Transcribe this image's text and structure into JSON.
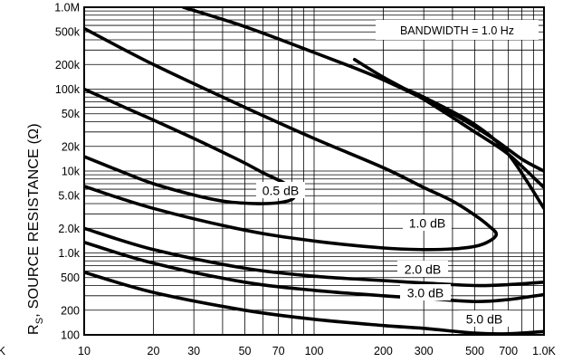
{
  "chart_data": {
    "type": "line",
    "title": "",
    "ylabel_main": "R",
    "ylabel_sub": "S",
    "ylabel_rest": ", SOURCE RESISTANCE  (Ω)",
    "xlabel_fragment": "K",
    "x_scale": "log",
    "y_scale": "log",
    "xlim": [
      10,
      1000
    ],
    "ylim": [
      100,
      1000000
    ],
    "x_ticks": [
      {
        "value": 10,
        "label": "10"
      },
      {
        "value": 20,
        "label": "20"
      },
      {
        "value": 30,
        "label": "30"
      },
      {
        "value": 50,
        "label": "50"
      },
      {
        "value": 70,
        "label": "70"
      },
      {
        "value": 100,
        "label": "100"
      },
      {
        "value": 200,
        "label": "200"
      },
      {
        "value": 300,
        "label": "300"
      },
      {
        "value": 500,
        "label": "500"
      },
      {
        "value": 700,
        "label": "700"
      },
      {
        "value": 1000,
        "label": "1.0K"
      }
    ],
    "y_ticks": [
      {
        "value": 100,
        "label": "100"
      },
      {
        "value": 200,
        "label": "200"
      },
      {
        "value": 500,
        "label": "500"
      },
      {
        "value": 1000,
        "label": "1.0k"
      },
      {
        "value": 2000,
        "label": "2.0k"
      },
      {
        "value": 5000,
        "label": "5.0k"
      },
      {
        "value": 10000,
        "label": "10k"
      },
      {
        "value": 20000,
        "label": "20k"
      },
      {
        "value": 50000,
        "label": "50k"
      },
      {
        "value": 100000,
        "label": "100k"
      },
      {
        "value": 200000,
        "label": "200k"
      },
      {
        "value": 500000,
        "label": "500k"
      },
      {
        "value": 1000000,
        "label": "1.0M"
      }
    ],
    "grid": true,
    "annotation": "BANDWIDTH = 1.0 Hz",
    "annotation_position": "top-right",
    "series": [
      {
        "name": "0.5 dB",
        "closed": true,
        "points": [
          [
            10,
            15000
          ],
          [
            15,
            9500
          ],
          [
            20,
            7000
          ],
          [
            30,
            5100
          ],
          [
            40,
            4300
          ],
          [
            50,
            4050
          ],
          [
            60,
            4000
          ],
          [
            70,
            4100
          ],
          [
            80,
            4500
          ],
          [
            82,
            5400
          ],
          [
            75,
            7000
          ],
          [
            60,
            9500
          ],
          [
            50,
            12500
          ],
          [
            40,
            17000
          ],
          [
            30,
            25000
          ],
          [
            20,
            42000
          ],
          [
            15,
            60000
          ],
          [
            10,
            100000
          ]
        ]
      },
      {
        "name": "1.0 dB",
        "closed": true,
        "points": [
          [
            10,
            6500
          ],
          [
            20,
            3500
          ],
          [
            50,
            1900
          ],
          [
            100,
            1400
          ],
          [
            200,
            1150
          ],
          [
            300,
            1100
          ],
          [
            400,
            1120
          ],
          [
            500,
            1200
          ],
          [
            580,
            1400
          ],
          [
            620,
            1700
          ],
          [
            580,
            2100
          ],
          [
            500,
            2900
          ],
          [
            400,
            4300
          ],
          [
            300,
            6300
          ],
          [
            200,
            11000
          ],
          [
            100,
            25000
          ],
          [
            50,
            60000
          ],
          [
            20,
            200000
          ],
          [
            10,
            550000
          ]
        ]
      },
      {
        "name": "2.0 dB",
        "points": [
          [
            10,
            2000
          ],
          [
            20,
            1100
          ],
          [
            50,
            650
          ],
          [
            100,
            520
          ],
          [
            200,
            460
          ],
          [
            300,
            430
          ],
          [
            500,
            400
          ],
          [
            700,
            410
          ],
          [
            1000,
            440
          ]
        ]
      },
      {
        "name": "3.0 dB",
        "points": [
          [
            10,
            1350
          ],
          [
            20,
            750
          ],
          [
            50,
            440
          ],
          [
            100,
            350
          ],
          [
            200,
            300
          ],
          [
            300,
            280
          ],
          [
            500,
            255
          ],
          [
            700,
            270
          ],
          [
            1000,
            310
          ]
        ]
      },
      {
        "name": "5.0 dB",
        "points": [
          [
            10,
            580
          ],
          [
            20,
            330
          ],
          [
            50,
            200
          ],
          [
            100,
            155
          ],
          [
            200,
            130
          ],
          [
            300,
            120
          ],
          [
            500,
            105
          ],
          [
            700,
            103
          ],
          [
            1000,
            110
          ]
        ]
      },
      {
        "name": "",
        "points": [
          [
            27,
            1000000
          ],
          [
            50,
            580000
          ],
          [
            100,
            280000
          ],
          [
            200,
            130000
          ],
          [
            400,
            50000
          ],
          [
            600,
            25000
          ],
          [
            800,
            14000
          ],
          [
            1000,
            10000
          ]
        ]
      },
      {
        "name": "",
        "points": [
          [
            150,
            230000
          ],
          [
            200,
            140000
          ],
          [
            300,
            75000
          ],
          [
            500,
            30000
          ],
          [
            700,
            16000
          ],
          [
            1000,
            6300
          ]
        ]
      },
      {
        "name": "",
        "points": [
          [
            250,
            100000
          ],
          [
            300,
            80000
          ],
          [
            500,
            37000
          ],
          [
            700,
            16000
          ],
          [
            1000,
            3500
          ]
        ]
      }
    ]
  }
}
